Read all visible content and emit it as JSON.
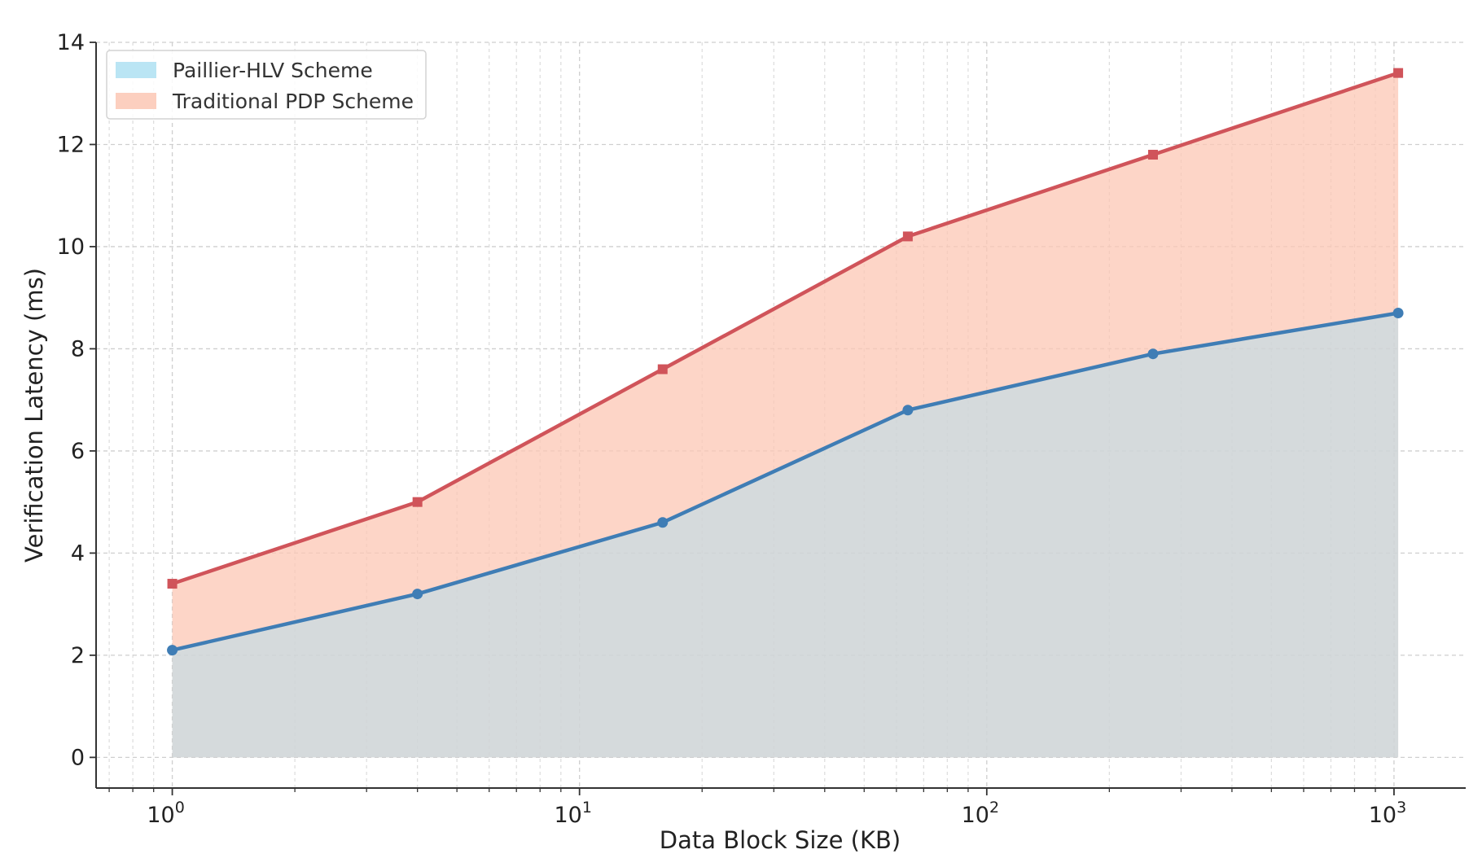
{
  "chart_data": {
    "type": "area",
    "xlabel": "Data Block Size (KB)",
    "ylabel": "Verification Latency (ms)",
    "xscale": "log",
    "xlim": [
      0.65,
      1500
    ],
    "ylim": [
      -0.6,
      14
    ],
    "x": [
      1,
      4,
      16,
      64,
      256,
      1024
    ],
    "y_ticks": [
      0,
      2,
      4,
      6,
      8,
      10,
      12,
      14
    ],
    "x_ticks": [
      {
        "value": 1,
        "base": "10",
        "exp": "0"
      },
      {
        "value": 10,
        "base": "10",
        "exp": "1"
      },
      {
        "value": 100,
        "base": "10",
        "exp": "2"
      },
      {
        "value": 1000,
        "base": "10",
        "exp": "3"
      }
    ],
    "grid": true,
    "legend_position": "top-left",
    "series": [
      {
        "name": "Paillier-HLV Scheme",
        "values": [
          2.1,
          3.2,
          4.6,
          6.8,
          7.9,
          8.7
        ],
        "line_color": "#3f7db5",
        "fill_color": "#aee0f2",
        "marker": "circle"
      },
      {
        "name": "Traditional PDP Scheme",
        "values": [
          3.4,
          5.0,
          7.6,
          10.2,
          11.8,
          13.4
        ],
        "line_color": "#d0545a",
        "fill_color": "#fcc7b4",
        "marker": "square"
      }
    ]
  }
}
